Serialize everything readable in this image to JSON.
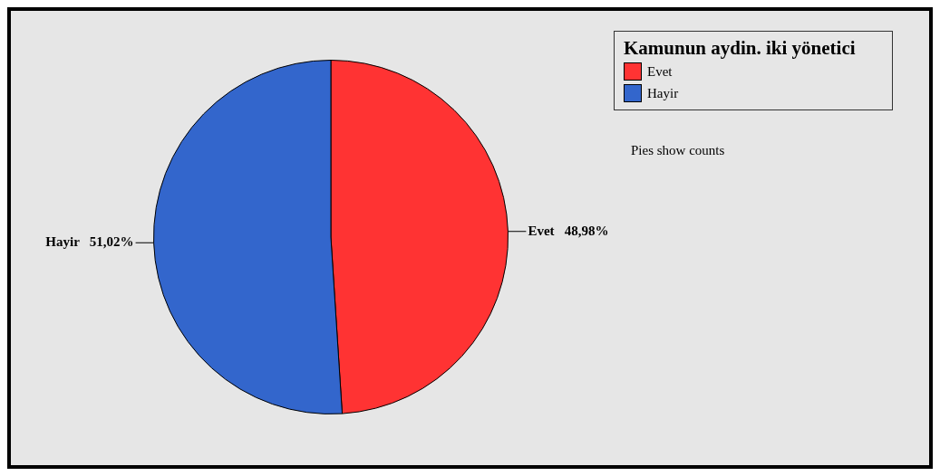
{
  "chart_data": {
    "type": "pie",
    "categories": [
      "Evet",
      "Hayir"
    ],
    "values": [
      48.98,
      51.02
    ],
    "colors": [
      "#ff3333",
      "#3366cc"
    ],
    "value_labels": [
      "48,98%",
      "51,02%"
    ],
    "legend": "top right",
    "legend_title": "Kamunun aydin. iki yönetici",
    "annotations": [
      "Pies show counts"
    ]
  }
}
